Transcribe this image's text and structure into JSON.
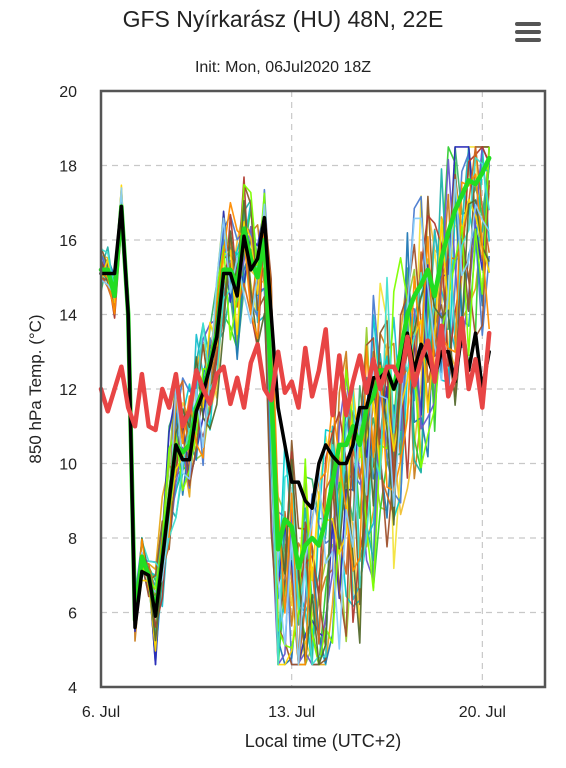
{
  "chart_data": {
    "type": "line",
    "title": "GFS Nyírkarász (HU) 48N, 22E",
    "subtitle": "Init: Mon, 06Jul2020 18Z",
    "xlabel": "Local time (UTC+2)",
    "ylabel": "850 hPa Temp. (°C)",
    "xlim_days": [
      6.0,
      22.3
    ],
    "ylim": [
      4,
      20
    ],
    "yticks": [
      4,
      6,
      8,
      10,
      12,
      14,
      16,
      18,
      20
    ],
    "xticks": [
      {
        "day": 6.0,
        "label": "6. Jul"
      },
      {
        "day": 13.0,
        "label": "13. Jul"
      },
      {
        "day": 20.0,
        "label": "20. Jul"
      }
    ],
    "grid": true,
    "step_days": 0.25,
    "highlight_series": [
      {
        "role": "control-run",
        "color": "#22dd22",
        "width": 4.5,
        "values": [
          15.2,
          15.2,
          14.5,
          16.9,
          14.0,
          5.8,
          7.5,
          7.0,
          6.0,
          7.5,
          9.0,
          10.5,
          10.3,
          10.5,
          11.5,
          12.0,
          12.7,
          13.5,
          15.2,
          15.2,
          14.8,
          16.3,
          15.5,
          15.0,
          16.0,
          12.0,
          7.7,
          8.5,
          8.3,
          7.2,
          7.8,
          8.0,
          7.8,
          8.5,
          9.5,
          10.5,
          10.5,
          11.0,
          10.5,
          11.5,
          11.8,
          12.5,
          12.5,
          12.0,
          13.0,
          14.0,
          14.5,
          14.8,
          15.2,
          14.5,
          15.5,
          16.2,
          16.8,
          17.2,
          17.6,
          17.5,
          17.8,
          18.2
        ]
      },
      {
        "role": "operational-run",
        "color": "#000000",
        "width": 3.5,
        "values": [
          15.1,
          15.1,
          15.1,
          16.9,
          14.0,
          5.6,
          7.1,
          7.0,
          5.9,
          7.4,
          9.0,
          10.5,
          10.1,
          10.1,
          11.4,
          11.9,
          12.6,
          13.4,
          15.1,
          15.1,
          14.5,
          16.1,
          15.2,
          15.5,
          16.6,
          14.0,
          11.5,
          10.5,
          9.5,
          9.5,
          9.0,
          8.8,
          10.0,
          10.5,
          10.2,
          10.0,
          10.0,
          10.5,
          11.5,
          11.5,
          12.3,
          12.3,
          12.5,
          12.0,
          12.5,
          13.5,
          12.5,
          13.2,
          12.8,
          12.3,
          13.0,
          13.0,
          12.2,
          13.5,
          12.5,
          13.5,
          12.0,
          13.0
        ]
      },
      {
        "role": "climate-mean",
        "color": "#e84545",
        "width": 4.5,
        "values": [
          12.0,
          11.4,
          12.0,
          12.6,
          11.5,
          11.0,
          12.4,
          11.0,
          10.9,
          12.0,
          11.5,
          12.4,
          11.0,
          11.4,
          12.5,
          12.0,
          11.6,
          12.4,
          12.6,
          11.6,
          12.3,
          11.5,
          12.7,
          13.2,
          12.0,
          11.7,
          13.0,
          11.9,
          12.2,
          11.5,
          13.1,
          11.8,
          12.5,
          13.6,
          11.3,
          12.9,
          11.3,
          12.2,
          12.9,
          11.9,
          12.8,
          12.0,
          12.6,
          12.6,
          12.2,
          13.4,
          12.1,
          12.8,
          13.3,
          12.2,
          13.7,
          11.8,
          12.3,
          13.9,
          12.0,
          12.8,
          11.5,
          13.5
        ]
      }
    ],
    "ensemble_colors": [
      "#e6a817",
      "#c97d1f",
      "#f0c030",
      "#f3e33c",
      "#9acd32",
      "#3cb371",
      "#32cd32",
      "#20b2aa",
      "#17becf",
      "#00ced1",
      "#4a7bd0",
      "#2a2ab8",
      "#1f77b4",
      "#6a5acd",
      "#8b5a2b",
      "#b03a2e",
      "#d2691e",
      "#a0522d",
      "#ffd700",
      "#7fff00",
      "#40e0d0",
      "#556b2f",
      "#ff8c00",
      "#87cefa"
    ]
  }
}
